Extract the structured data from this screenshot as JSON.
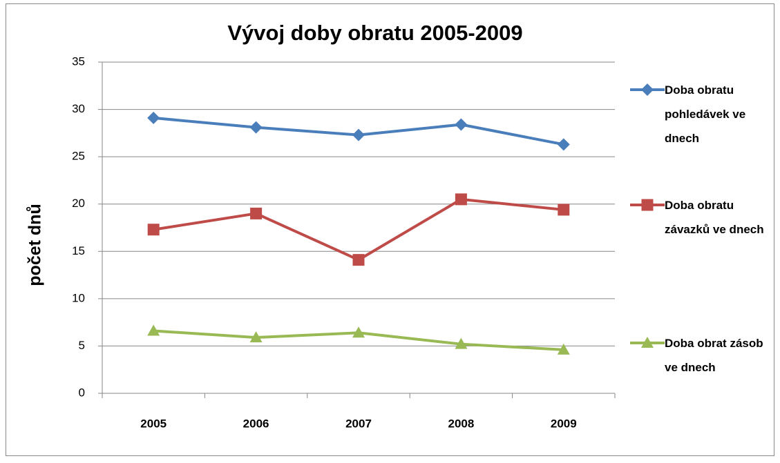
{
  "chart_data": {
    "type": "line",
    "title": "Vývoj doby obratu 2005-2009",
    "y_label": "počet dnů",
    "categories": [
      "2005",
      "2006",
      "2007",
      "2008",
      "2009"
    ],
    "series": [
      {
        "name": "Doba obratu pohledávek ve dnech",
        "color": "#4a7ebb",
        "marker": "diamond",
        "values": [
          29.1,
          28.1,
          27.3,
          28.4,
          26.3
        ]
      },
      {
        "name": "Doba obratu závazků ve dnech",
        "color": "#be4b48",
        "marker": "square",
        "values": [
          17.3,
          19.0,
          14.1,
          20.5,
          19.4
        ]
      },
      {
        "name": "Doba obrat zásob ve dnech",
        "color": "#98b954",
        "marker": "triangle",
        "values": [
          6.6,
          5.9,
          6.4,
          5.2,
          4.6
        ]
      }
    ],
    "ylim": [
      0,
      35
    ],
    "yticks": [
      0,
      5,
      10,
      15,
      20,
      25,
      30,
      35
    ],
    "grid": true,
    "legend": "right"
  }
}
